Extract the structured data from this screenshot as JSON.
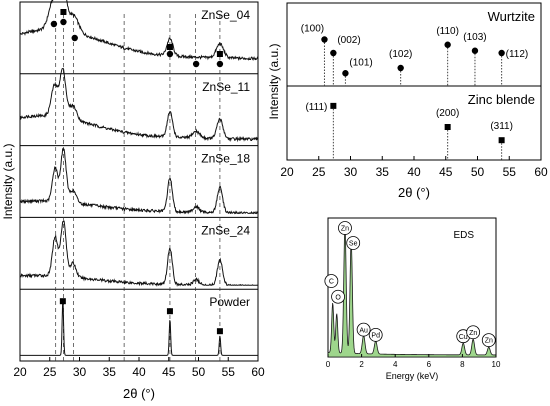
{
  "chart_data": [
    {
      "type": "line",
      "id": "xrd_left",
      "xlabel": "2θ (°)",
      "ylabel": "Intensity (a.u.)",
      "xlim": [
        20,
        60
      ],
      "xticks": [
        20,
        25,
        30,
        35,
        40,
        45,
        50,
        55,
        60
      ],
      "reference_lines": [
        26,
        27.3,
        29,
        37.5,
        45.2,
        49.5,
        53.6
      ],
      "panels": [
        {
          "name": "ZnSe_04",
          "markers": [
            {
              "x": 25.7,
              "shape": "circle"
            },
            {
              "x": 27.3,
              "shape": "circle"
            },
            {
              "x": 27.3,
              "shape": "square"
            },
            {
              "x": 29.2,
              "shape": "circle"
            },
            {
              "x": 45.2,
              "shape": "circle"
            },
            {
              "x": 45.2,
              "shape": "square"
            },
            {
              "x": 49.6,
              "shape": "circle"
            },
            {
              "x": 53.6,
              "shape": "circle"
            },
            {
              "x": 53.6,
              "shape": "square"
            }
          ],
          "peaks": [
            {
              "x": 25.7,
              "h": 0.55,
              "w": 0.8
            },
            {
              "x": 27.2,
              "h": 0.75,
              "w": 0.6
            },
            {
              "x": 29.0,
              "h": 0.3,
              "w": 0.8
            },
            {
              "x": 45.2,
              "h": 0.3,
              "w": 0.5
            },
            {
              "x": 53.6,
              "h": 0.25,
              "w": 0.6
            }
          ],
          "background": {
            "base": 0.28,
            "bump": 0.45,
            "center": 25.5,
            "width": 8
          }
        },
        {
          "name": "ZnSe_11",
          "markers": [],
          "peaks": [
            {
              "x": 25.8,
              "h": 0.55,
              "w": 0.55
            },
            {
              "x": 27.2,
              "h": 0.85,
              "w": 0.5
            },
            {
              "x": 28.9,
              "h": 0.25,
              "w": 0.6
            },
            {
              "x": 45.2,
              "h": 0.45,
              "w": 0.45
            },
            {
              "x": 49.6,
              "h": 0.12,
              "w": 0.6
            },
            {
              "x": 53.6,
              "h": 0.35,
              "w": 0.5
            }
          ],
          "background": {
            "base": 0.12,
            "bump": 0.35,
            "center": 24,
            "width": 8
          }
        },
        {
          "name": "ZnSe_18",
          "markers": [],
          "peaks": [
            {
              "x": 25.9,
              "h": 0.6,
              "w": 0.45
            },
            {
              "x": 27.3,
              "h": 0.95,
              "w": 0.45
            },
            {
              "x": 28.9,
              "h": 0.22,
              "w": 0.55
            },
            {
              "x": 45.2,
              "h": 0.6,
              "w": 0.4
            },
            {
              "x": 49.6,
              "h": 0.1,
              "w": 0.5
            },
            {
              "x": 53.6,
              "h": 0.45,
              "w": 0.45
            }
          ],
          "background": {
            "base": 0.08,
            "bump": 0.15,
            "center": 24,
            "width": 8
          }
        },
        {
          "name": "ZnSe_24",
          "markers": [],
          "peaks": [
            {
              "x": 25.9,
              "h": 0.7,
              "w": 0.45
            },
            {
              "x": 27.3,
              "h": 1.0,
              "w": 0.45
            },
            {
              "x": 28.9,
              "h": 0.25,
              "w": 0.5
            },
            {
              "x": 45.2,
              "h": 0.65,
              "w": 0.4
            },
            {
              "x": 49.6,
              "h": 0.1,
              "w": 0.5
            },
            {
              "x": 53.6,
              "h": 0.45,
              "w": 0.45
            }
          ],
          "background": {
            "base": 0.06,
            "bump": 0.12,
            "center": 24,
            "width": 8
          }
        },
        {
          "name": "Powder",
          "markers": [
            {
              "x": 27.2,
              "shape": "square"
            },
            {
              "x": 45.2,
              "shape": "square"
            },
            {
              "x": 53.6,
              "shape": "square"
            }
          ],
          "peaks": [
            {
              "x": 27.2,
              "h": 1.0,
              "w": 0.12
            },
            {
              "x": 45.2,
              "h": 0.65,
              "w": 0.12
            },
            {
              "x": 53.6,
              "h": 0.35,
              "w": 0.12
            }
          ],
          "background": {
            "base": 0.03,
            "bump": 0.0,
            "center": 24,
            "width": 8
          }
        }
      ]
    },
    {
      "type": "stick",
      "id": "reference_patterns",
      "xlabel": "2θ (°)",
      "ylabel": "Intensity (a.u.)",
      "xlim": [
        20,
        60
      ],
      "xticks": [
        20,
        25,
        30,
        35,
        40,
        45,
        50,
        55,
        60
      ],
      "panels": [
        {
          "name": "Wurtzite",
          "marker": "circle",
          "peaks": [
            {
              "x": 25.9,
              "label": "(100)",
              "h": 0.62
            },
            {
              "x": 27.3,
              "label": "(002)",
              "h": 0.44
            },
            {
              "x": 29.2,
              "label": "(101)",
              "h": 0.17
            },
            {
              "x": 37.9,
              "label": "(102)",
              "h": 0.24
            },
            {
              "x": 45.3,
              "label": "(110)",
              "h": 0.55
            },
            {
              "x": 49.6,
              "label": "(103)",
              "h": 0.47
            },
            {
              "x": 53.8,
              "label": "(112)",
              "h": 0.44
            }
          ]
        },
        {
          "name": "Zinc blende",
          "marker": "square",
          "peaks": [
            {
              "x": 27.3,
              "label": "(111)",
              "h": 0.82
            },
            {
              "x": 45.3,
              "label": "(200)",
              "h": 0.5
            },
            {
              "x": 53.8,
              "label": "(311)",
              "h": 0.3
            }
          ]
        }
      ]
    },
    {
      "type": "area",
      "id": "eds",
      "title": "EDS",
      "xlabel": "Energy (keV)",
      "xlim": [
        0,
        10
      ],
      "xticks": [
        0,
        2,
        4,
        6,
        8,
        10
      ],
      "fill": "#9ed68c",
      "peaks": [
        {
          "x": 0.28,
          "label": "C",
          "h": 0.38,
          "w": 0.06
        },
        {
          "x": 0.52,
          "label": "O",
          "h": 0.3,
          "w": 0.06
        },
        {
          "x": 1.01,
          "label": "Zn",
          "h": 0.98,
          "w": 0.07
        },
        {
          "x": 1.38,
          "label": "Se",
          "h": 0.86,
          "w": 0.07
        },
        {
          "x": 2.12,
          "label": "Au",
          "h": 0.14,
          "w": 0.08
        },
        {
          "x": 2.84,
          "label": "Pd",
          "h": 0.1,
          "w": 0.08
        },
        {
          "x": 8.05,
          "label": "Cu",
          "h": 0.09,
          "w": 0.08
        },
        {
          "x": 8.64,
          "label": "Zn",
          "h": 0.12,
          "w": 0.08
        },
        {
          "x": 9.57,
          "label": "Zn",
          "h": 0.06,
          "w": 0.08
        }
      ]
    }
  ]
}
